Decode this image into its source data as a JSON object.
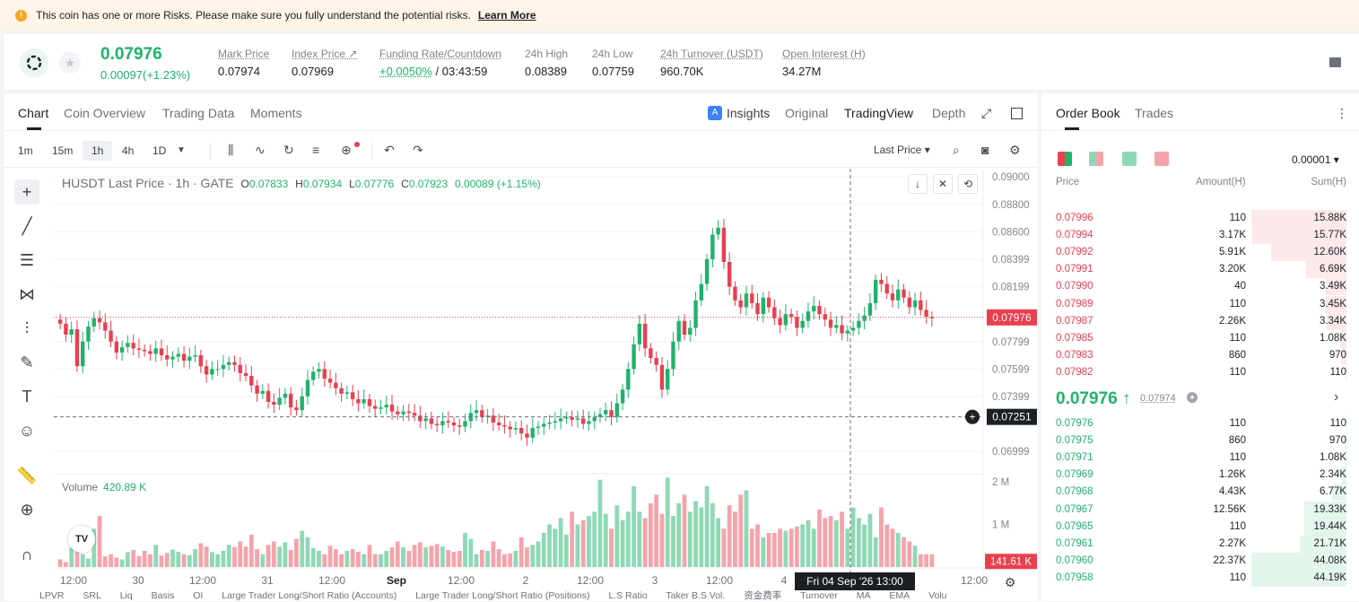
{
  "banner": {
    "text": "This coin has one or more Risks. Please make sure you fully understand the potential risks.",
    "link": "Learn More"
  },
  "ticker": {
    "last_price": "0.07976",
    "change": "0.00097(+1.23%)",
    "stats": [
      {
        "label": "Mark Price",
        "value": "0.07974"
      },
      {
        "label": "Index Price ↗",
        "value": "0.07969"
      },
      {
        "label": "Funding Rate/Countdown",
        "value_green": "+0.0050%",
        "value": "/ 03:43:59"
      },
      {
        "label": "24h High",
        "value": "0.08389"
      },
      {
        "label": "24h Low",
        "value": "0.07759"
      },
      {
        "label": "24h Turnover (USDT)",
        "value": "960.70K"
      },
      {
        "label": "Open Interest (H)",
        "value": "34.27M"
      }
    ]
  },
  "chart_tabs": {
    "chart": "Chart",
    "coin_overview": "Coin Overview",
    "trading_data": "Trading Data",
    "moments": "Moments",
    "insights": "Insights",
    "original": "Original",
    "tradingview": "TradingView",
    "depth": "Depth"
  },
  "timeframes": [
    "1m",
    "15m",
    "1h",
    "4h",
    "1D"
  ],
  "price_type": "Last Price",
  "legend": {
    "symbol": "HUSDT Last Price · 1h · GATE",
    "o": "0.07833",
    "h": "0.07934",
    "l": "0.07776",
    "c": "0.07923",
    "chg": "0.00089 (+1.15%)"
  },
  "volume": {
    "label": "Volume",
    "value": "420.89 K"
  },
  "chart_data": {
    "type": "candlestick",
    "price_ticks": [
      "0.09000",
      "0.08800",
      "0.08600",
      "0.08399",
      "0.08199",
      "0.07799",
      "0.07599",
      "0.07399",
      "0.06999"
    ],
    "price_tick_values": [
      0.09,
      0.088,
      0.086,
      0.08399,
      0.08199,
      0.07799,
      0.07599,
      0.07399,
      0.06999
    ],
    "last_price_label": "0.07976",
    "last_price": 0.07976,
    "cursor_price_label": "0.07251",
    "cursor_price": 0.07251,
    "volume_ticks": [
      "2 M",
      "1 M"
    ],
    "volume_tick_values": [
      2000000,
      1000000
    ],
    "volume_last_label": "141.61 K",
    "volume_last": 141610,
    "time_ticks": [
      "12:00",
      "30",
      "12:00",
      "31",
      "12:00",
      "Sep",
      "12:00",
      "2",
      "12:00",
      "3",
      "12:00",
      "4",
      "12:00"
    ],
    "cursor_time": "Fri 04 Sep '26   13:00",
    "ylim": [
      0.0685,
      0.0906
    ],
    "closes": [
      0.0793,
      0.0785,
      0.0789,
      0.0762,
      0.078,
      0.0791,
      0.0797,
      0.0794,
      0.0788,
      0.078,
      0.0772,
      0.0776,
      0.0779,
      0.0775,
      0.0774,
      0.0773,
      0.0771,
      0.0775,
      0.077,
      0.0767,
      0.0769,
      0.0771,
      0.0766,
      0.0769,
      0.077,
      0.0762,
      0.0756,
      0.076,
      0.076,
      0.0763,
      0.0765,
      0.0763,
      0.0757,
      0.0755,
      0.0748,
      0.0742,
      0.0744,
      0.0736,
      0.0734,
      0.0739,
      0.0742,
      0.0732,
      0.073,
      0.074,
      0.0752,
      0.0758,
      0.076,
      0.0753,
      0.075,
      0.0746,
      0.0742,
      0.0743,
      0.0738,
      0.0735,
      0.0738,
      0.0733,
      0.0731,
      0.0732,
      0.0734,
      0.0729,
      0.0727,
      0.0729,
      0.0728,
      0.0726,
      0.0722,
      0.0724,
      0.072,
      0.0719,
      0.0722,
      0.0721,
      0.0719,
      0.0718,
      0.0722,
      0.0728,
      0.073,
      0.0725,
      0.0726,
      0.0721,
      0.0719,
      0.0718,
      0.0716,
      0.0717,
      0.0713,
      0.071,
      0.0717,
      0.0718,
      0.072,
      0.0721,
      0.0722,
      0.0724,
      0.0725,
      0.0723,
      0.0724,
      0.072,
      0.0722,
      0.0725,
      0.0727,
      0.073,
      0.0725,
      0.0735,
      0.0745,
      0.076,
      0.0778,
      0.0793,
      0.0775,
      0.0768,
      0.0763,
      0.0745,
      0.076,
      0.078,
      0.0795,
      0.0785,
      0.079,
      0.081,
      0.0822,
      0.084,
      0.0858,
      0.0863,
      0.0838,
      0.082,
      0.081,
      0.0805,
      0.0815,
      0.0808,
      0.08,
      0.0812,
      0.0805,
      0.0797,
      0.0792,
      0.08,
      0.0798,
      0.079,
      0.0795,
      0.0802,
      0.0806,
      0.08,
      0.0796,
      0.079,
      0.0792,
      0.0786,
      0.0788,
      0.079,
      0.0795,
      0.0799,
      0.0808,
      0.0825,
      0.0822,
      0.0815,
      0.081,
      0.0818,
      0.0812,
      0.0805,
      0.081,
      0.0803,
      0.0798,
      0.0797
    ],
    "volumes": [
      180000,
      120000,
      450000,
      600000,
      300000,
      200000,
      900000,
      1200000,
      250000,
      300000,
      220000,
      180000,
      350000,
      400000,
      260000,
      380000,
      300000,
      520000,
      270000,
      330000,
      410000,
      360000,
      300000,
      280000,
      420000,
      560000,
      480000,
      350000,
      300000,
      380000,
      520000,
      470000,
      600000,
      480000,
      760000,
      420000,
      300000,
      520000,
      600000,
      480000,
      580000,
      400000,
      660000,
      850000,
      700000,
      450000,
      380000,
      300000,
      500000,
      420000,
      300000,
      380000,
      420000,
      360000,
      300000,
      520000,
      300000,
      300000,
      380000,
      460000,
      600000,
      460000,
      380000,
      520000,
      580000,
      460000,
      500000,
      540000,
      480000,
      400000,
      360000,
      380000,
      800000,
      660000,
      300000,
      400000,
      380000,
      600000,
      420000,
      300000,
      320000,
      380000,
      700000,
      460000,
      520000,
      600000,
      800000,
      1000000,
      900000,
      1150000,
      760000,
      1300000,
      1000000,
      1100000,
      1200000,
      1300000,
      2050000,
      1250000,
      900000,
      1450000,
      1100000,
      1300000,
      1900000,
      1300000,
      1150000,
      1500000,
      1700000,
      1250000,
      2100000,
      1200000,
      1500000,
      1700000,
      1300000,
      1550000,
      1400000,
      1900000,
      1500000,
      1150000,
      900000,
      1450000,
      1300000,
      1700000,
      1800000,
      900000,
      1000000,
      700000,
      800000,
      800000,
      900000,
      850000,
      900000,
      950000,
      1000000,
      1100000,
      900000,
      1350000,
      1150000,
      1200000,
      1100000,
      1300000,
      900000,
      1400000,
      1150000,
      1000000,
      1250000,
      700000,
      1400000,
      1000000,
      900000,
      800000,
      700000,
      600000,
      500000
    ]
  },
  "indicators": [
    "LPVR",
    "SRL",
    "Liq",
    "Basis",
    "OI",
    "Large Trader Long/Short Ratio (Accounts)",
    "Large Trader Long/Short Ratio (Positions)",
    "L.S Ratio",
    "Taker B.S Vol.",
    "资金费率",
    "Turnover",
    "MA",
    "EMA",
    "Volu"
  ],
  "orderbook": {
    "tabs": [
      "Order Book",
      "Trades"
    ],
    "precision": "0.00001",
    "headers": {
      "price": "Price",
      "amount": "Amount(H)",
      "sum": "Sum(H)"
    },
    "asks": [
      {
        "price": "0.07996",
        "amount": "110",
        "sum": "15.88K",
        "depth": 1.0
      },
      {
        "price": "0.07994",
        "amount": "3.17K",
        "sum": "15.77K",
        "depth": 0.99
      },
      {
        "price": "0.07992",
        "amount": "5.91K",
        "sum": "12.60K",
        "depth": 0.79
      },
      {
        "price": "0.07991",
        "amount": "3.20K",
        "sum": "6.69K",
        "depth": 0.42
      },
      {
        "price": "0.07990",
        "amount": "40",
        "sum": "3.49K",
        "depth": 0.22
      },
      {
        "price": "0.07989",
        "amount": "110",
        "sum": "3.45K",
        "depth": 0.22
      },
      {
        "price": "0.07987",
        "amount": "2.26K",
        "sum": "3.34K",
        "depth": 0.21
      },
      {
        "price": "0.07985",
        "amount": "110",
        "sum": "1.08K",
        "depth": 0.07
      },
      {
        "price": "0.07983",
        "amount": "860",
        "sum": "970",
        "depth": 0.06
      },
      {
        "price": "0.07982",
        "amount": "110",
        "sum": "110",
        "depth": 0.01
      }
    ],
    "mid_price": "0.07976 ↑",
    "mark_price": "0.07974",
    "bids": [
      {
        "price": "0.07976",
        "amount": "110",
        "sum": "110",
        "depth": 0.002
      },
      {
        "price": "0.07975",
        "amount": "860",
        "sum": "970",
        "depth": 0.02
      },
      {
        "price": "0.07971",
        "amount": "110",
        "sum": "1.08K",
        "depth": 0.02
      },
      {
        "price": "0.07969",
        "amount": "1.26K",
        "sum": "2.34K",
        "depth": 0.05
      },
      {
        "price": "0.07968",
        "amount": "4.43K",
        "sum": "6.77K",
        "depth": 0.15
      },
      {
        "price": "0.07967",
        "amount": "12.56K",
        "sum": "19.33K",
        "depth": 0.44
      },
      {
        "price": "0.07965",
        "amount": "110",
        "sum": "19.44K",
        "depth": 0.44
      },
      {
        "price": "0.07961",
        "amount": "2.27K",
        "sum": "21.71K",
        "depth": 0.49
      },
      {
        "price": "0.07960",
        "amount": "22.37K",
        "sum": "44.08K",
        "depth": 0.998
      },
      {
        "price": "0.07958",
        "amount": "110",
        "sum": "44.19K",
        "depth": 1.0
      }
    ]
  },
  "colors": {
    "up": "#20b26c",
    "down": "#e8404f",
    "vol_up": "#8fd8b5",
    "vol_down": "#f5a3ab"
  }
}
